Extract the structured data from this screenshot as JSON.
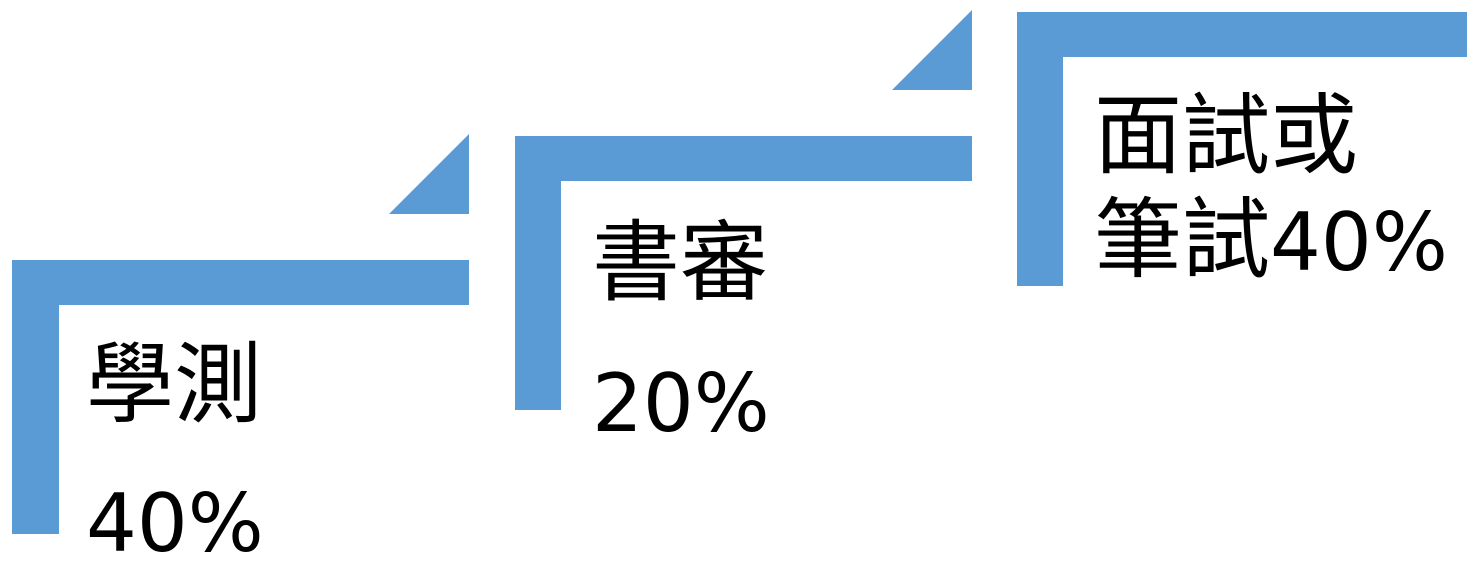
{
  "theme": {
    "bar_color": "#5B9BD5",
    "text_color": "#000000"
  },
  "steps": [
    {
      "title_line1": "學測",
      "percent": "40%"
    },
    {
      "title_line1": "書審",
      "percent": "20%"
    },
    {
      "title_line1": "面試或",
      "title_line2": "筆試",
      "percent": "40%"
    }
  ]
}
